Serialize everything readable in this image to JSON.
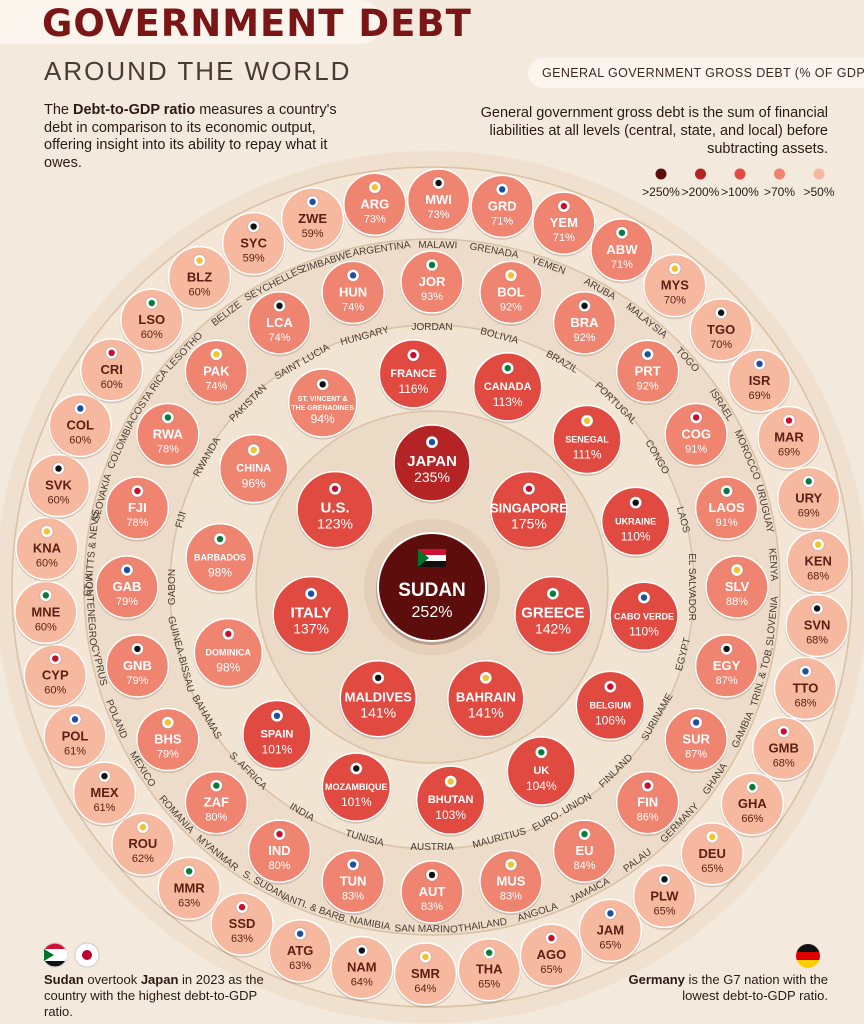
{
  "header": {
    "title": "GOVERNMENT DEBT",
    "subtitle": "AROUND THE WORLD",
    "intro_bold": "Debt-to-GDP ratio",
    "intro_pre": "The ",
    "intro_post": " measures a country's debt in comparison to its economic output, offering insight into its ability to repay what it owes."
  },
  "legend": {
    "title": "GENERAL GOVERNMENT GROSS DEBT (% OF GDP)",
    "note": "General government gross debt is the sum of financial liabilities at all levels (central, state, and local) before subtracting assets.",
    "items": [
      {
        "label": ">250%",
        "color": "#5e0d0d"
      },
      {
        "label": ">200%",
        "color": "#b52424"
      },
      {
        "label": ">100%",
        "color": "#e04a40"
      },
      {
        "label": ">70%",
        "color": "#ef8470"
      },
      {
        "label": ">50%",
        "color": "#f7b8a0"
      }
    ]
  },
  "footnotes": {
    "left_bold1": "Sudan",
    "left_mid": " overtook ",
    "left_bold2": "Japan",
    "left_post": " in 2023 as the country with the highest debt-to-GDP ratio.",
    "right_bold": "Germany",
    "right_post": " is the G7 nation with the lowest debt-to-GDP ratio."
  },
  "chart_data": {
    "type": "bubble-rings",
    "unit": "% of GDP",
    "center": {
      "name": "SUDAN",
      "value": 252
    },
    "ring1": [
      {
        "name": "JAPAN",
        "value": 235
      },
      {
        "name": "SINGAPORE",
        "value": 175
      },
      {
        "name": "GREECE",
        "value": 142
      },
      {
        "name": "BAHRAIN",
        "value": 141
      },
      {
        "name": "MALDIVES",
        "value": 141
      },
      {
        "name": "ITALY",
        "value": 137
      },
      {
        "name": "U.S.",
        "value": 123
      }
    ],
    "ring2": [
      {
        "name": "FRANCE",
        "value": 116
      },
      {
        "name": "CANADA",
        "value": 113
      },
      {
        "name": "SENEGAL",
        "value": 111
      },
      {
        "name": "UKRAINE",
        "value": 110
      },
      {
        "name": "CABO VERDE",
        "value": 110
      },
      {
        "name": "BELGIUM",
        "value": 106
      },
      {
        "name": "UK",
        "value": 104
      },
      {
        "name": "BHUTAN",
        "value": 103
      },
      {
        "name": "MOZAMBIQUE",
        "value": 101
      },
      {
        "name": "SPAIN",
        "value": 101
      },
      {
        "name": "DOMINICA",
        "value": 98
      },
      {
        "name": "BARBADOS",
        "value": 98
      },
      {
        "name": "CHINA",
        "value": 96
      },
      {
        "name": "ST. VINCENT & THE GRENADINES",
        "value": 94
      }
    ],
    "ring3": [
      {
        "code": "JOR",
        "name": "JORDAN",
        "value": 93
      },
      {
        "code": "BOL",
        "name": "BOLIVIA",
        "value": 92
      },
      {
        "code": "BRA",
        "name": "BRAZIL",
        "value": 92
      },
      {
        "code": "PRT",
        "name": "PORTUGAL",
        "value": 92
      },
      {
        "code": "COG",
        "name": "CONGO",
        "value": 91
      },
      {
        "code": "LAOS",
        "name": "LAOS",
        "value": 91
      },
      {
        "code": "SLV",
        "name": "EL SALVADOR",
        "value": 88
      },
      {
        "code": "EGY",
        "name": "EGYPT",
        "value": 87
      },
      {
        "code": "SUR",
        "name": "SURINAME",
        "value": 87
      },
      {
        "code": "FIN",
        "name": "FINLAND",
        "value": 86
      },
      {
        "code": "EU",
        "name": "EURO. UNION",
        "value": 84
      },
      {
        "code": "MUS",
        "name": "MAURITIUS",
        "value": 83
      },
      {
        "code": "AUT",
        "name": "AUSTRIA",
        "value": 83
      },
      {
        "code": "TUN",
        "name": "TUNISIA",
        "value": 83
      },
      {
        "code": "IND",
        "name": "INDIA",
        "value": 80
      },
      {
        "code": "ZAF",
        "name": "S. AFRICA",
        "value": 80
      },
      {
        "code": "BHS",
        "name": "BAHAMAS",
        "value": 79
      },
      {
        "code": "GNB",
        "name": "GUINEA-BISSAU",
        "value": 79
      },
      {
        "code": "GAB",
        "name": "GABON",
        "value": 79
      },
      {
        "code": "FJI",
        "name": "FIJI",
        "value": 78
      },
      {
        "code": "RWA",
        "name": "RWANDA",
        "value": 78
      },
      {
        "code": "PAK",
        "name": "PAKISTAN",
        "value": 74
      },
      {
        "code": "LCA",
        "name": "SAINT LUCIA",
        "value": 74
      },
      {
        "code": "HUN",
        "name": "HUNGARY",
        "value": 74
      }
    ],
    "ring4": [
      {
        "code": "ARG",
        "name": "ARGENTINA",
        "value": 73
      },
      {
        "code": "MWI",
        "name": "MALAWI",
        "value": 73
      },
      {
        "code": "GRD",
        "name": "GRENADA",
        "value": 71
      },
      {
        "code": "YEM",
        "name": "YEMEN",
        "value": 71
      },
      {
        "code": "ABW",
        "name": "ARUBA",
        "value": 71
      },
      {
        "code": "MYS",
        "name": "MALAYSIA",
        "value": 70
      },
      {
        "code": "TGO",
        "name": "TOGO",
        "value": 70
      },
      {
        "code": "ISR",
        "name": "ISRAEL",
        "value": 69
      },
      {
        "code": "MAR",
        "name": "MOROCCO",
        "value": 69
      },
      {
        "code": "URY",
        "name": "URUGUAY",
        "value": 69
      },
      {
        "code": "KEN",
        "name": "KENYA",
        "value": 68
      },
      {
        "code": "SVN",
        "name": "SLOVENIA",
        "value": 68
      },
      {
        "code": "TTO",
        "name": "TRIN. & TOB.",
        "value": 68
      },
      {
        "code": "GMB",
        "name": "GAMBIA",
        "value": 68
      },
      {
        "code": "GHA",
        "name": "GHANA",
        "value": 66
      },
      {
        "code": "DEU",
        "name": "GERMANY",
        "value": 65
      },
      {
        "code": "PLW",
        "name": "PALAU",
        "value": 65
      },
      {
        "code": "JAM",
        "name": "JAMAICA",
        "value": 65
      },
      {
        "code": "AGO",
        "name": "ANGOLA",
        "value": 65
      },
      {
        "code": "THA",
        "name": "THAILAND",
        "value": 65
      },
      {
        "code": "SMR",
        "name": "SAN MARINO",
        "value": 64
      },
      {
        "code": "NAM",
        "name": "NAMIBIA",
        "value": 64
      },
      {
        "code": "ATG",
        "name": "ANTI. & BARB.",
        "value": 63
      },
      {
        "code": "SSD",
        "name": "S. SUDAN",
        "value": 63
      },
      {
        "code": "MMR",
        "name": "MYANMAR",
        "value": 63
      },
      {
        "code": "ROU",
        "name": "ROMANIA",
        "value": 62
      },
      {
        "code": "MEX",
        "name": "MEXICO",
        "value": 61
      },
      {
        "code": "POL",
        "name": "POLAND",
        "value": 61
      },
      {
        "code": "CYP",
        "name": "CYPRUS",
        "value": 60
      },
      {
        "code": "MNE",
        "name": "MONTENEGRO",
        "value": 60
      },
      {
        "code": "KNA",
        "name": "ST. KITTS & NEVIS",
        "value": 60
      },
      {
        "code": "SVK",
        "name": "SLOVAKIA",
        "value": 60
      },
      {
        "code": "COL",
        "name": "COLOMBIA",
        "value": 60
      },
      {
        "code": "CRI",
        "name": "COSTA RICA",
        "value": 60
      },
      {
        "code": "LSO",
        "name": "LESOTHO",
        "value": 60
      },
      {
        "code": "BLZ",
        "name": "BELIZE",
        "value": 60
      },
      {
        "code": "SYC",
        "name": "SEYCHELLES",
        "value": 59
      },
      {
        "code": "ZWE",
        "name": "ZIMBABWE",
        "value": 59
      }
    ]
  }
}
